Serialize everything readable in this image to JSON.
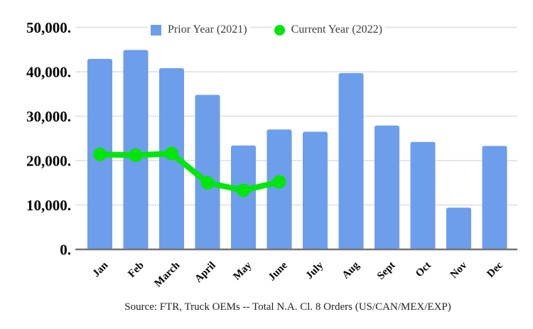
{
  "source_note": "Source: FTR, Truck OEMs -- Total N.A. Cl. 8 Orders (US/CAN/MEX/EXP)",
  "legend": {
    "items": [
      {
        "label": "Prior Year (2021)",
        "color": "#6d9eeb",
        "shape": "square"
      },
      {
        "label": "Current Year (2022)",
        "color": "#00e50a",
        "shape": "circle"
      }
    ]
  },
  "colors": {
    "bar": "#6d9eeb",
    "line": "#00e50a",
    "grid": "#dedede",
    "axis": "#757575",
    "text": "#000000"
  },
  "chart_data": {
    "type": "combo",
    "categories": [
      "Jan",
      "Feb",
      "March",
      "April",
      "May",
      "June",
      "July",
      "Aug",
      "Sept",
      "Oct",
      "Nov",
      "Dec"
    ],
    "series": [
      {
        "name": "Prior Year (2021)",
        "type": "bar",
        "color": "#6d9eeb",
        "values": [
          42900,
          44900,
          40800,
          34800,
          23400,
          27000,
          26500,
          39700,
          27900,
          24200,
          9400,
          23300
        ]
      },
      {
        "name": "Current Year (2022)",
        "type": "line",
        "color": "#00e50a",
        "values": [
          21400,
          21200,
          21600,
          15000,
          13300,
          15200,
          null,
          null,
          null,
          null,
          null,
          null
        ]
      }
    ],
    "title": "",
    "xlabel": "",
    "ylabel": "",
    "ylim": [
      0,
      50000
    ],
    "grid": true,
    "legend_position": "top",
    "yticks": [
      {
        "value": 0,
        "label": "0."
      },
      {
        "value": 10000,
        "label": "10,000."
      },
      {
        "value": 20000,
        "label": "20,000."
      },
      {
        "value": 30000,
        "label": "30,000."
      },
      {
        "value": 40000,
        "label": "40,000."
      },
      {
        "value": 50000,
        "label": "50,000."
      }
    ]
  }
}
